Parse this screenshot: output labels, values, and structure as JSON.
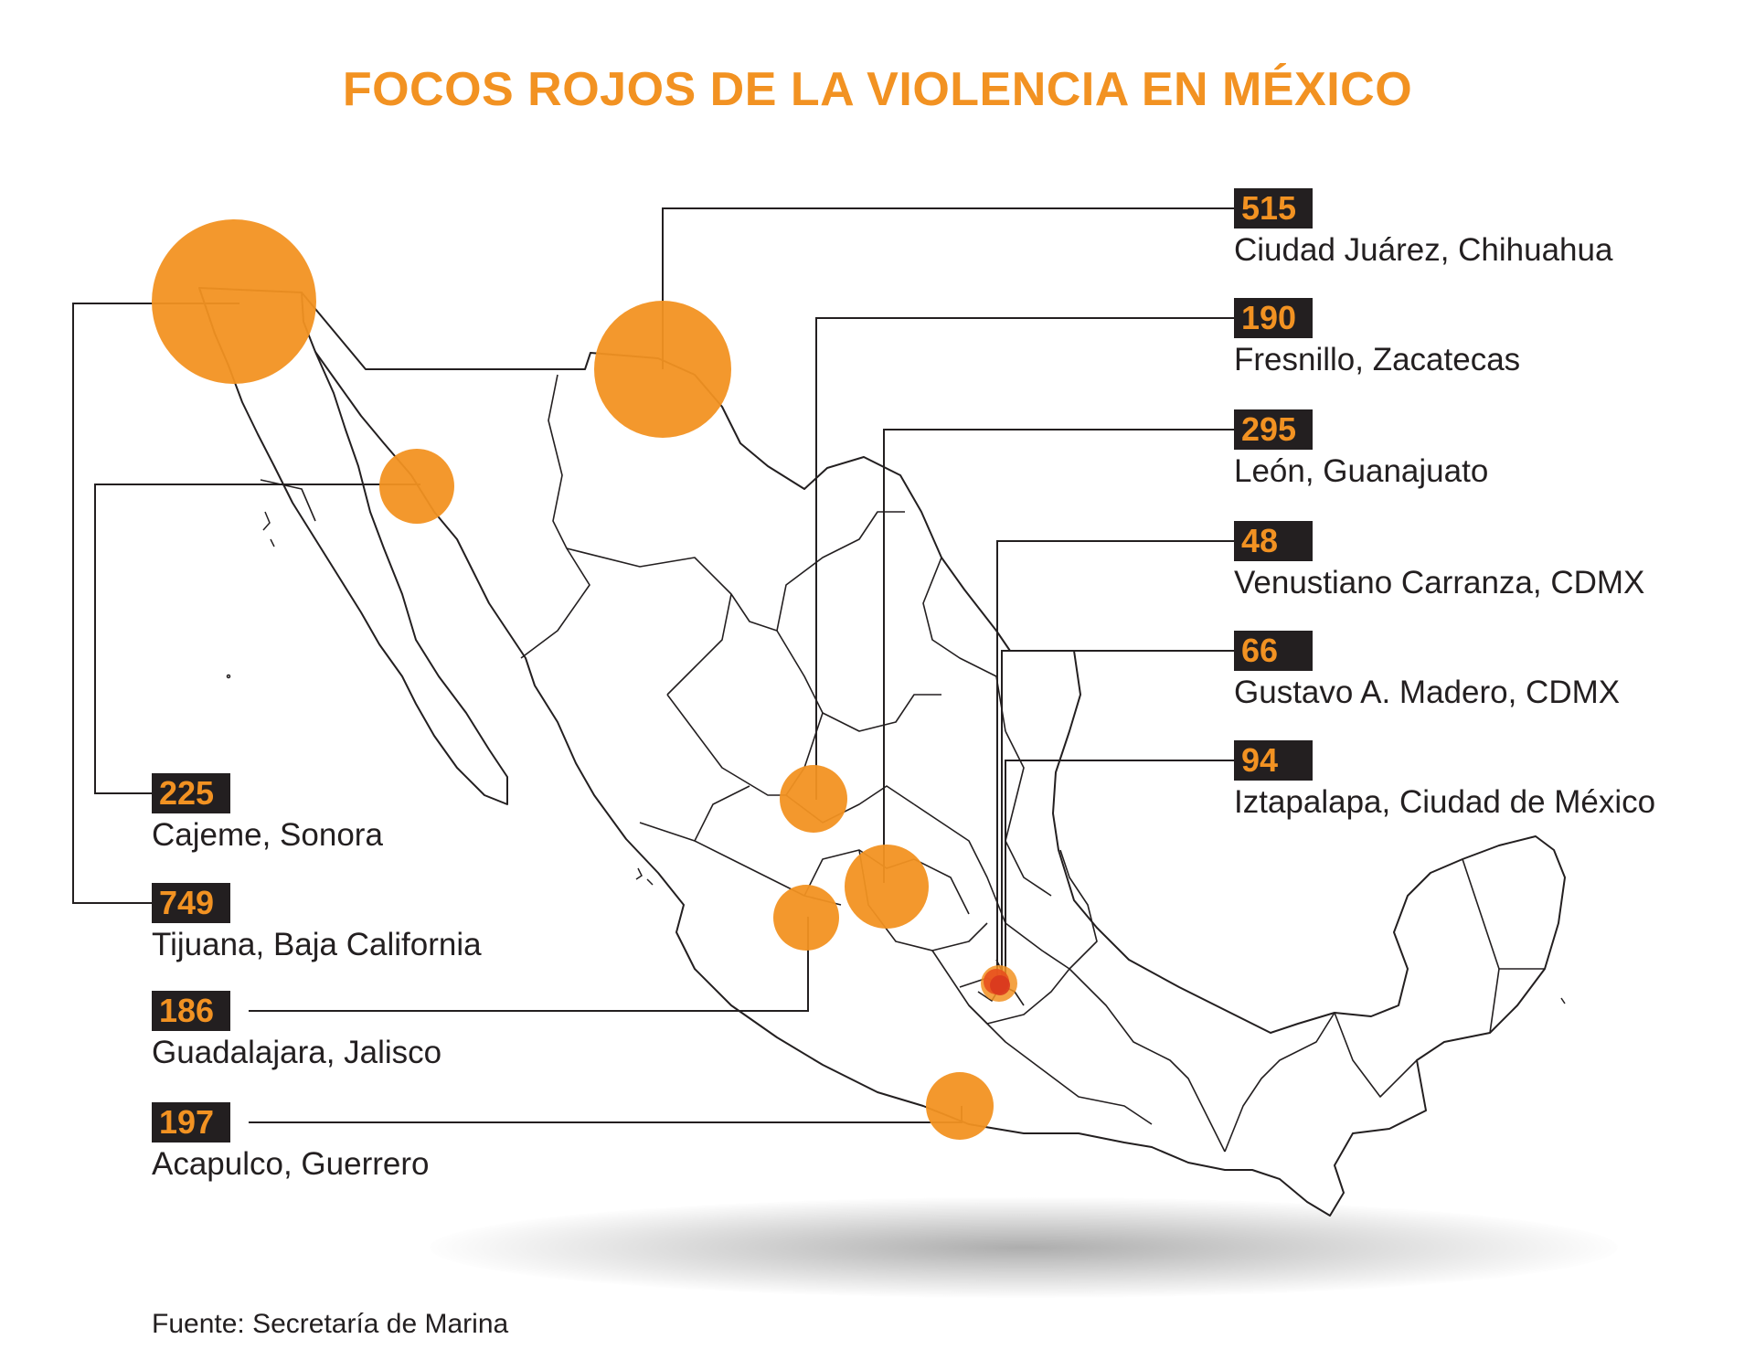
{
  "title": "FOCOS ROJOS DE LA VIOLENCIA EN MÉXICO",
  "source": "Fuente: Secretaría de Marina",
  "colors": {
    "accent": "#f29222",
    "badge_bg": "#231f20",
    "text": "#231f20",
    "cdmx_marker": "#e8501e"
  },
  "markers": [
    {
      "id": "ciudad-juarez",
      "value": "515",
      "place": "Ciudad Juárez, Chihuahua"
    },
    {
      "id": "fresnillo",
      "value": "190",
      "place": "Fresnillo, Zacatecas"
    },
    {
      "id": "leon",
      "value": "295",
      "place": "León, Guanajuato"
    },
    {
      "id": "venustiano-carranza",
      "value": "48",
      "place": "Venustiano Carranza, CDMX"
    },
    {
      "id": "gustavo-madero",
      "value": "66",
      "place": "Gustavo A. Madero, CDMX"
    },
    {
      "id": "iztapalapa",
      "value": "94",
      "place": "Iztapalapa, Ciudad de México"
    },
    {
      "id": "cajeme",
      "value": "225",
      "place": "Cajeme, Sonora"
    },
    {
      "id": "tijuana",
      "value": "749",
      "place": "Tijuana, Baja California"
    },
    {
      "id": "guadalajara",
      "value": "186",
      "place": "Guadalajara, Jalisco"
    },
    {
      "id": "acapulco",
      "value": "197",
      "place": "Acapulco, Guerrero"
    }
  ]
}
